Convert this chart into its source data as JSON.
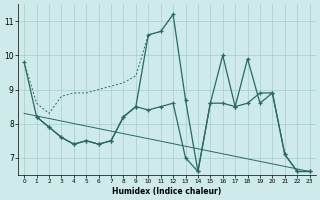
{
  "xlabel": "Humidex (Indice chaleur)",
  "line_jagged_x": [
    0,
    1,
    2,
    3,
    4,
    5,
    6,
    7,
    8,
    9,
    10,
    11,
    12,
    13,
    14,
    15,
    16,
    17,
    18,
    19,
    20,
    21,
    22,
    23
  ],
  "line_jagged_y": [
    9.8,
    8.2,
    7.9,
    7.6,
    7.4,
    7.5,
    7.4,
    7.5,
    8.2,
    8.5,
    10.6,
    10.7,
    11.2,
    8.7,
    6.6,
    8.6,
    10.0,
    8.5,
    9.9,
    8.6,
    8.9,
    7.1,
    6.6,
    6.6
  ],
  "line_dotted_x": [
    0,
    1,
    2,
    3,
    4,
    5,
    6,
    7,
    8,
    9,
    10,
    11,
    12
  ],
  "line_dotted_y": [
    9.8,
    8.6,
    8.3,
    8.8,
    8.9,
    8.9,
    9.0,
    9.1,
    9.2,
    9.4,
    10.6,
    10.7,
    11.2
  ],
  "line_flat_x": [
    1,
    2,
    3,
    4,
    5,
    6,
    7,
    8,
    9,
    10,
    11,
    12,
    13,
    14,
    15,
    16,
    17,
    18,
    19,
    20,
    21,
    22,
    23
  ],
  "line_flat_y": [
    8.2,
    7.9,
    7.6,
    7.4,
    7.5,
    7.4,
    7.5,
    8.2,
    8.5,
    8.4,
    8.5,
    8.6,
    7.0,
    6.6,
    8.6,
    8.6,
    8.5,
    8.6,
    8.9,
    8.9,
    7.1,
    6.6,
    6.6
  ],
  "trend_x": [
    0,
    23
  ],
  "trend_y": [
    8.3,
    6.6
  ],
  "ylim": [
    6.5,
    11.5
  ],
  "xlim": [
    -0.5,
    23.5
  ],
  "yticks": [
    7,
    8,
    9,
    10,
    11
  ],
  "xticks": [
    0,
    1,
    2,
    3,
    4,
    5,
    6,
    7,
    8,
    9,
    10,
    11,
    12,
    13,
    14,
    15,
    16,
    17,
    18,
    19,
    20,
    21,
    22,
    23
  ],
  "line_color": "#266b5e",
  "bg_color": "#ceeaea",
  "grid_color": "#aacccc"
}
